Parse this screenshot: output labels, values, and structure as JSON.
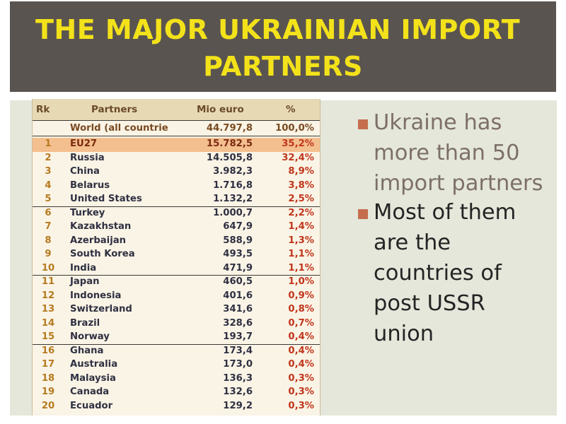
{
  "title": {
    "line1": "THE MAJOR UKRAINIAN IMPORT",
    "line2": "PARTNERS"
  },
  "table": {
    "headers": {
      "rank": "Rk",
      "partners": "Partners",
      "value": "Mio euro",
      "percent": "%"
    },
    "world": {
      "name": "World (all countrie",
      "value": "44.797,8",
      "percent": "100,0%"
    },
    "rows": [
      {
        "rank": "1",
        "name": "EU27",
        "value": "15.782,5",
        "percent": "35,2%"
      },
      {
        "rank": "2",
        "name": "Russia",
        "value": "14.505,8",
        "percent": "32,4%"
      },
      {
        "rank": "3",
        "name": "China",
        "value": "3.982,3",
        "percent": "8,9%"
      },
      {
        "rank": "4",
        "name": "Belarus",
        "value": "1.716,8",
        "percent": "3,8%"
      },
      {
        "rank": "5",
        "name": "United States",
        "value": "1.132,2",
        "percent": "2,5%"
      },
      {
        "rank": "6",
        "name": "Turkey",
        "value": "1.000,7",
        "percent": "2,2%"
      },
      {
        "rank": "7",
        "name": "Kazakhstan",
        "value": "647,9",
        "percent": "1,4%"
      },
      {
        "rank": "8",
        "name": "Azerbaijan",
        "value": "588,9",
        "percent": "1,3%"
      },
      {
        "rank": "9",
        "name": "South Korea",
        "value": "493,5",
        "percent": "1,1%"
      },
      {
        "rank": "10",
        "name": "India",
        "value": "471,9",
        "percent": "1,1%"
      },
      {
        "rank": "11",
        "name": "Japan",
        "value": "460,5",
        "percent": "1,0%"
      },
      {
        "rank": "12",
        "name": "Indonesia",
        "value": "401,6",
        "percent": "0,9%"
      },
      {
        "rank": "13",
        "name": "Switzerland",
        "value": "341,6",
        "percent": "0,8%"
      },
      {
        "rank": "14",
        "name": "Brazil",
        "value": "328,6",
        "percent": "0,7%"
      },
      {
        "rank": "15",
        "name": "Norway",
        "value": "193,7",
        "percent": "0,4%"
      },
      {
        "rank": "16",
        "name": "Ghana",
        "value": "173,4",
        "percent": "0,4%"
      },
      {
        "rank": "17",
        "name": "Australia",
        "value": "173,0",
        "percent": "0,4%"
      },
      {
        "rank": "18",
        "name": "Malaysia",
        "value": "136,3",
        "percent": "0,3%"
      },
      {
        "rank": "19",
        "name": "Canada",
        "value": "132,6",
        "percent": "0,3%"
      },
      {
        "rank": "20",
        "name": "Ecuador",
        "value": "129,2",
        "percent": "0,3%"
      }
    ]
  },
  "bullets": [
    "Ukraine has more than 50 import partners",
    "Most of them are the countries of post USSR union"
  ],
  "colors": {
    "title_bg": "#5a5450",
    "title_text": "#f3e21a",
    "highlight_row": "#f4bf8e",
    "bullet_square": "#c56e4e"
  }
}
